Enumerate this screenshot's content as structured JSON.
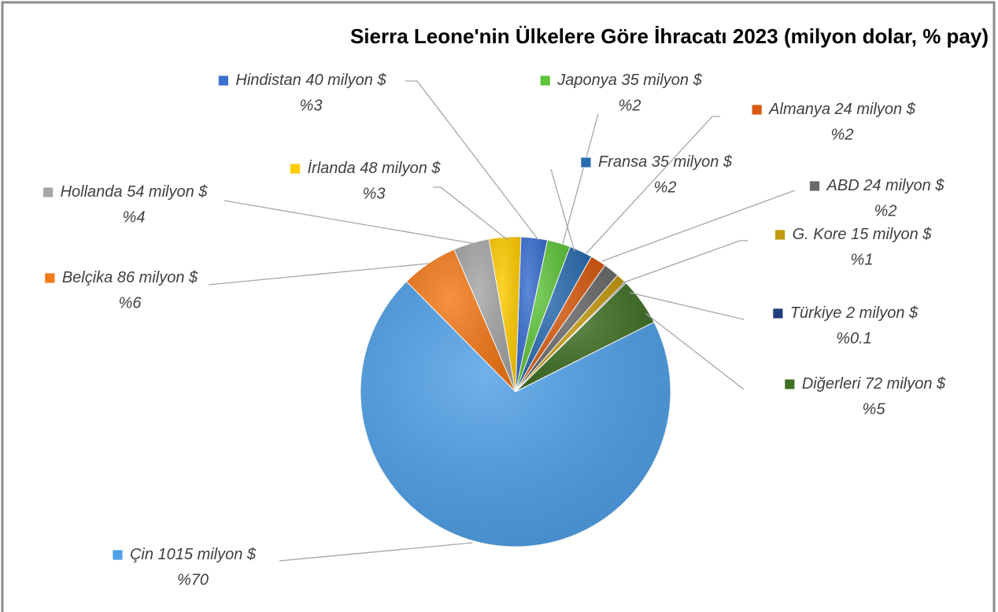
{
  "chart_data": {
    "type": "pie",
    "title": "Sierra Leone'nin Ülkelere Göre İhracatı 2023 (milyon dolar, % pay)",
    "categories": [
      "Hindistan",
      "Japonya",
      "Fransa",
      "Almanya",
      "ABD",
      "G. Kore",
      "Türkiye",
      "Diğerleri",
      "Çin",
      "Belçika",
      "Hollanda",
      "İrlanda"
    ],
    "values": [
      40,
      35,
      35,
      24,
      24,
      15,
      2,
      72,
      1015,
      86,
      54,
      48
    ],
    "value_labels": [
      "40 milyon $",
      "35 milyon $",
      "35 milyon $",
      "24 milyon $",
      "24 milyon $",
      "15 milyon $",
      "2 milyon $",
      "72 milyon $",
      "1015 milyon $",
      "86 milyon $",
      "54 milyon $",
      "48 milyon $"
    ],
    "percentages": [
      3,
      2,
      2,
      2,
      2,
      1,
      0.1,
      5,
      70,
      6,
      4,
      3
    ],
    "percent_labels": [
      "%3",
      "%2",
      "%2",
      "%2",
      "%2",
      "%1",
      "%0.1",
      "%5",
      "%70",
      "%6",
      "%4",
      "%3"
    ],
    "colors": [
      "#3a6fd0",
      "#5ec43a",
      "#2a6cb0",
      "#d65a10",
      "#6a6a6a",
      "#c49a10",
      "#203d80",
      "#3f6f25",
      "#4fa0e8",
      "#f47a1a",
      "#a6a6a6",
      "#ffcc00"
    ]
  }
}
